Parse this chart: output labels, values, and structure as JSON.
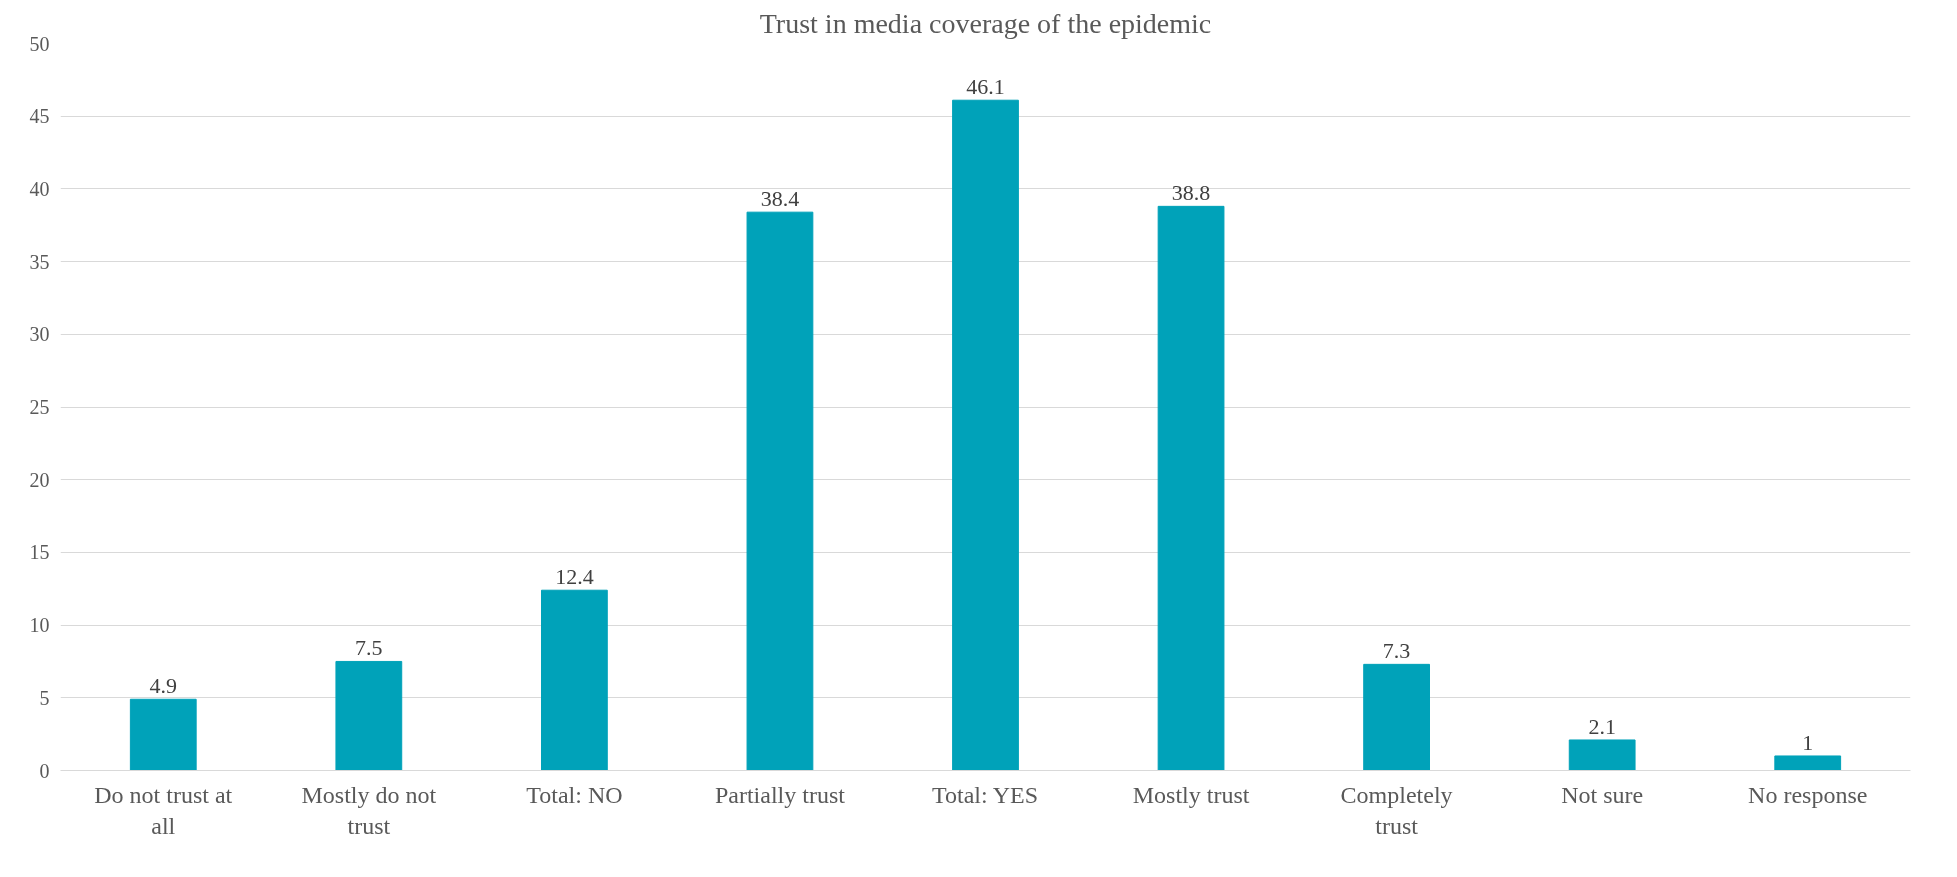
{
  "chart_data": {
    "type": "bar",
    "title": "Trust in media coverage of the epidemic",
    "categories": [
      "Do not trust at all",
      "Mostly do not trust",
      "Total: NO",
      "Partially trust",
      "Total: YES",
      "Mostly trust",
      "Completely trust",
      "Not sure",
      "No response"
    ],
    "values": [
      4.9,
      7.5,
      12.4,
      38.4,
      46.1,
      38.8,
      7.3,
      2.1,
      1
    ],
    "color": "#00a2b9",
    "ylim": [
      0,
      50
    ],
    "yticks": [
      0,
      5,
      10,
      15,
      20,
      25,
      30,
      35,
      40,
      45,
      50
    ],
    "grid": "y",
    "data_labels": true
  }
}
